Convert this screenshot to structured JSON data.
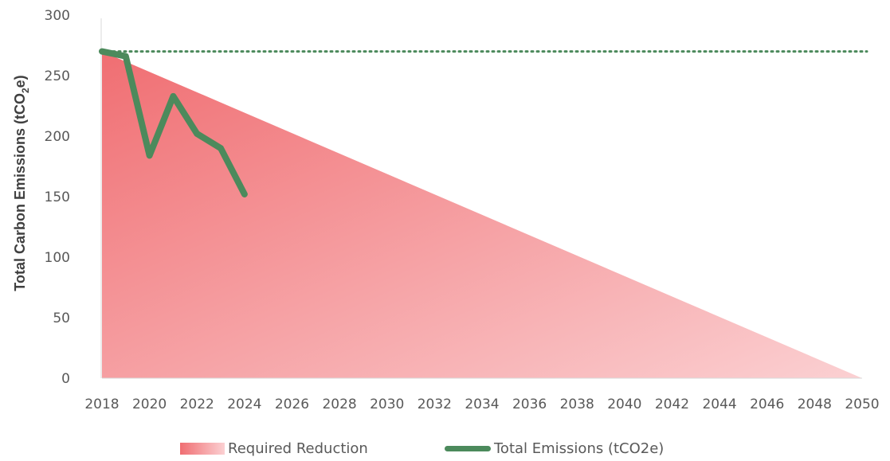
{
  "chart_data": {
    "type": "line",
    "ylabel": "Total Carbon Emissions (tCO2e)",
    "ylabel_parts": {
      "before": "Total Carbon Emissions (tCO",
      "subscript": "2",
      "after": "e)"
    },
    "ylim": [
      0,
      300
    ],
    "yticks": [
      0,
      50,
      100,
      150,
      200,
      250,
      300
    ],
    "xlim": [
      2018,
      2050
    ],
    "xticks": [
      2018,
      2020,
      2022,
      2024,
      2026,
      2028,
      2030,
      2032,
      2034,
      2036,
      2038,
      2040,
      2042,
      2044,
      2046,
      2048,
      2050
    ],
    "grid": false,
    "legend_position": "bottom",
    "series": [
      {
        "name": "Required Reduction",
        "kind": "area",
        "x": [
          2018,
          2050
        ],
        "y": [
          270,
          0
        ],
        "color_start": "#f06e72",
        "color_end": "#fbd0d2"
      },
      {
        "name": "Total Emissions (tCO2e)",
        "kind": "line",
        "x": [
          2018,
          2019,
          2020,
          2021,
          2022,
          2023,
          2024
        ],
        "y": [
          270,
          266,
          184,
          233,
          202,
          190,
          152
        ],
        "color": "#4c8a5c"
      }
    ],
    "reference_line": {
      "y": 270,
      "style": "dotted",
      "color": "#4c8a5c"
    }
  }
}
